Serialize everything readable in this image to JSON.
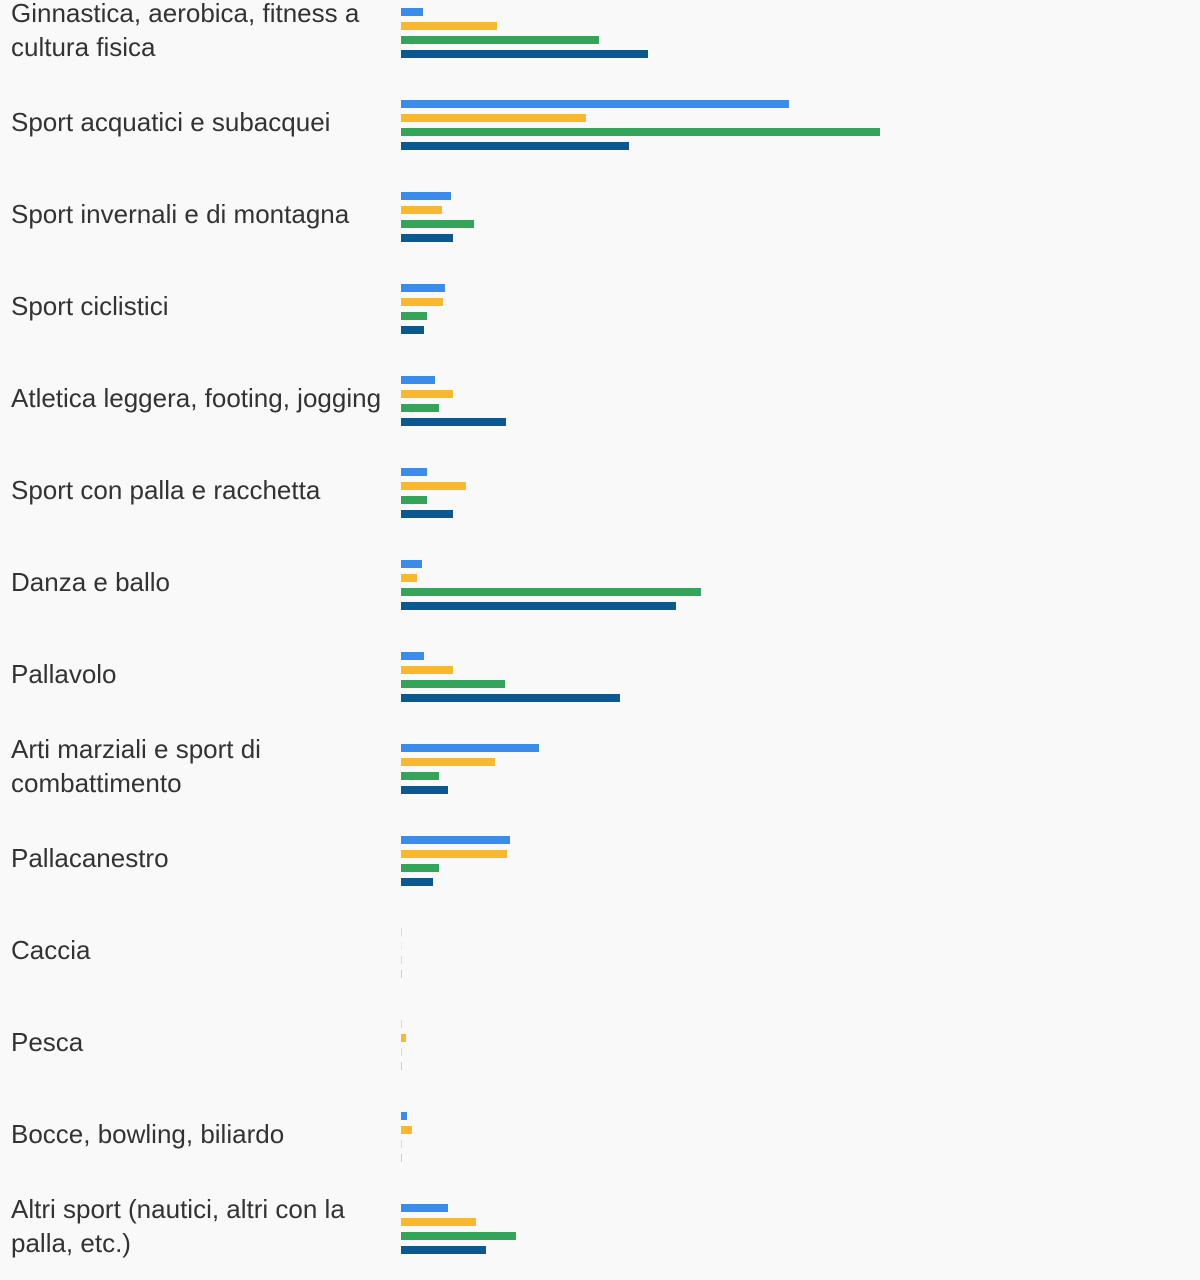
{
  "chart_data": {
    "type": "bar",
    "orientation": "horizontal",
    "categories": [
      "Ginnastica, aerobica, fitness a cultura fisica",
      "Sport acquatici e subacquei",
      "Sport invernali e di montagna",
      "Sport ciclistici",
      "Atletica leggera, footing, jogging",
      "Sport con palla e racchetta",
      "Danza e ballo",
      "Pallavolo",
      "Arti marziali e sport di combattimento",
      "Pallacanestro",
      "Caccia",
      "Pesca",
      "Bocce, bowling, biliardo",
      "Altri sport (nautici, altri con la palla, etc.)"
    ],
    "series": [
      {
        "color": "#3b8beb",
        "values": [
          4.5,
          79.5,
          10.2,
          9.0,
          7.0,
          5.3,
          4.3,
          4.7,
          28.3,
          22.3,
          0.3,
          0.2,
          1.2,
          9.6
        ]
      },
      {
        "color": "#f8b830",
        "values": [
          19.7,
          37.9,
          8.5,
          8.6,
          10.7,
          13.3,
          3.3,
          10.7,
          19.3,
          21.7,
          0.2,
          1.0,
          2.2,
          15.4
        ]
      },
      {
        "color": "#34a45a",
        "values": [
          40.6,
          98.2,
          15.0,
          5.3,
          7.8,
          5.3,
          61.5,
          21.3,
          7.8,
          7.8,
          0.2,
          0.2,
          0.2,
          23.6
        ]
      },
      {
        "color": "#0c5891",
        "values": [
          50.6,
          46.7,
          10.7,
          4.7,
          21.5,
          10.7,
          56.4,
          44.9,
          9.6,
          6.6,
          0.2,
          0.2,
          0.2,
          17.4
        ]
      }
    ],
    "xlim": [
      0,
      100
    ],
    "grid": false,
    "legend": "none"
  }
}
